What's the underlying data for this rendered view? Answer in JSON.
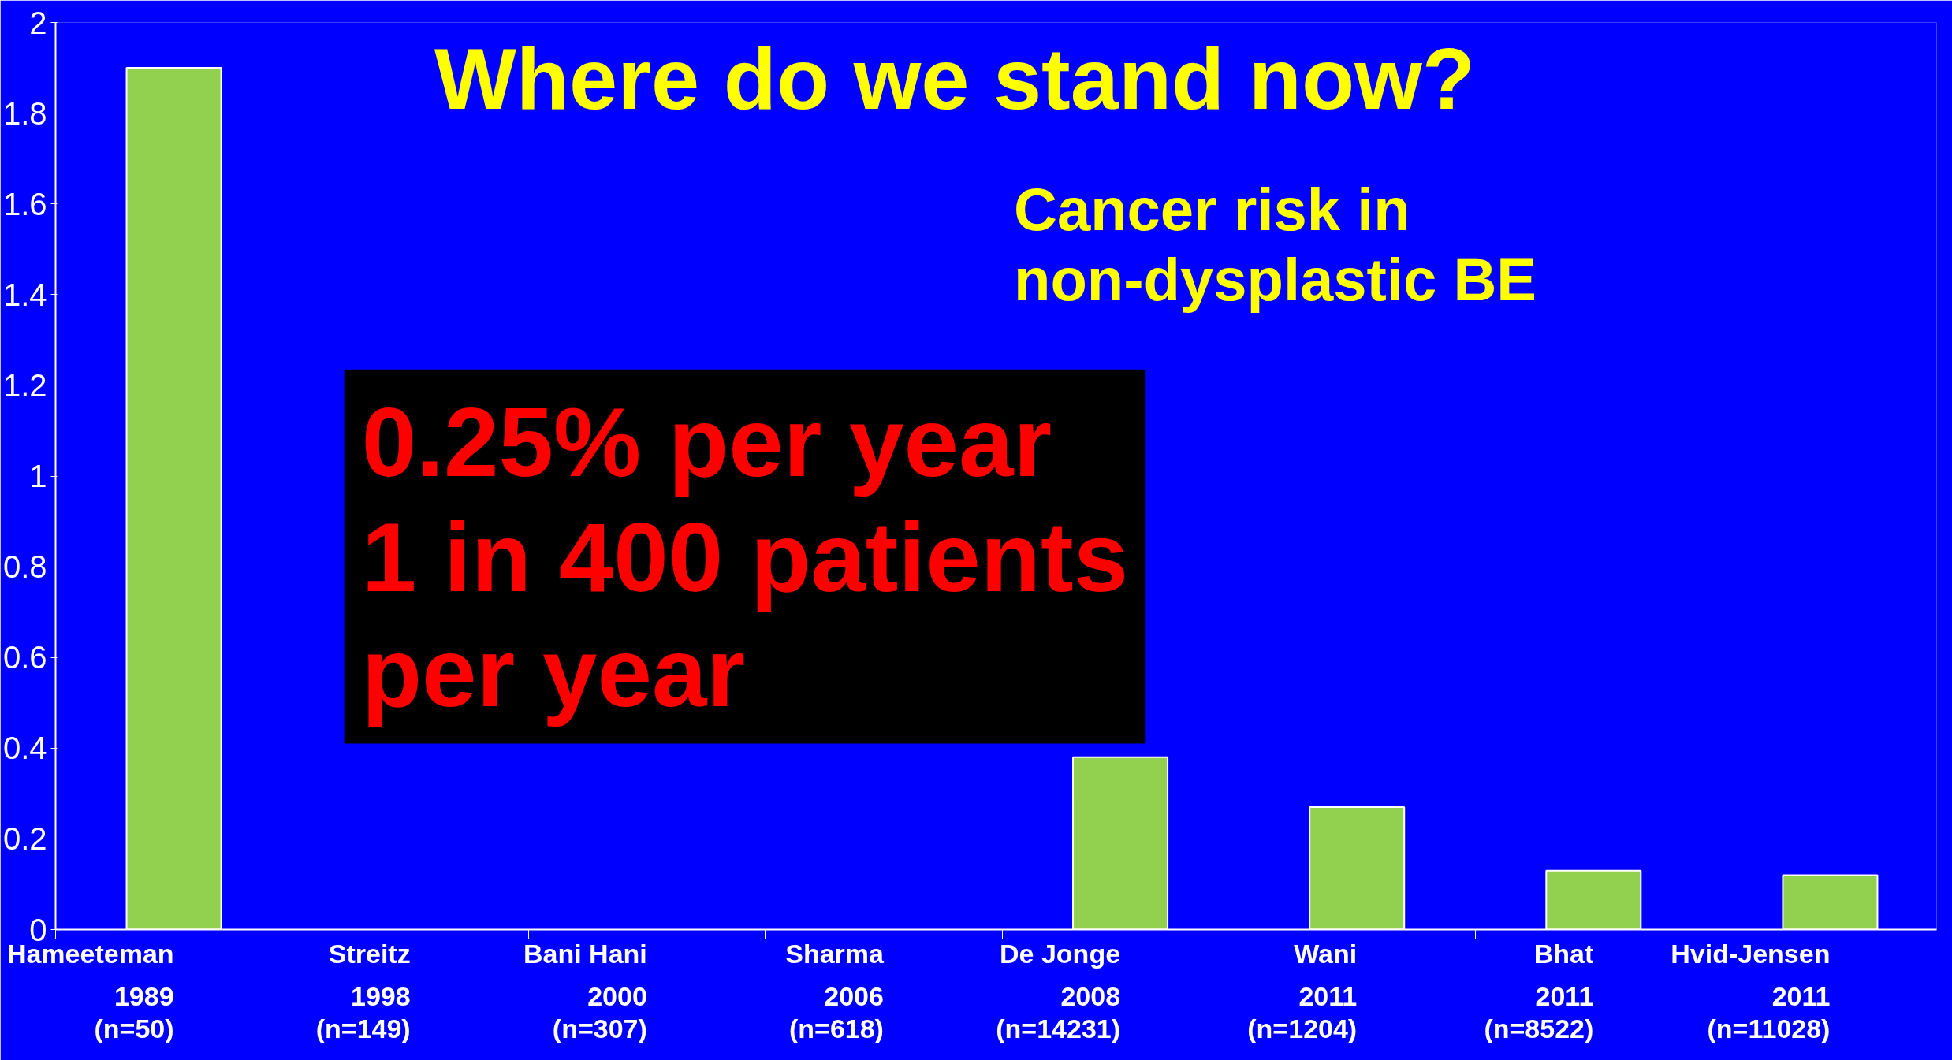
{
  "chart_data": {
    "type": "bar",
    "title": "Where do we stand now?",
    "categories": [
      "Hameeteman\n1989\n(n=50)",
      "Streitz\n1998\n(n=149)",
      "Bani Hani\n2000\n(n=307)",
      "Sharma\n2006\n(n=618)",
      "De Jonge\n2008\n(n=14231)",
      "Wani\n2011\n(n=1204)",
      "Bhat\n2011\n(n=8522)",
      "Hvid-Jensen\n2011\n(n=11028)"
    ],
    "values": [
      1.9,
      null,
      null,
      null,
      0.38,
      0.27,
      0.13,
      0.12
    ],
    "color": "#92d050",
    "ylim": [
      0,
      2
    ],
    "yticks": [
      0,
      0.2,
      0.4,
      0.6,
      0.8,
      1,
      1.2,
      1.4,
      1.6,
      1.8,
      2
    ],
    "grid": false,
    "annotations": [
      "Cancer risk in\nnon-dysplastic BE",
      "0.25% per year\n1 in 400 patients\nper year"
    ]
  }
}
